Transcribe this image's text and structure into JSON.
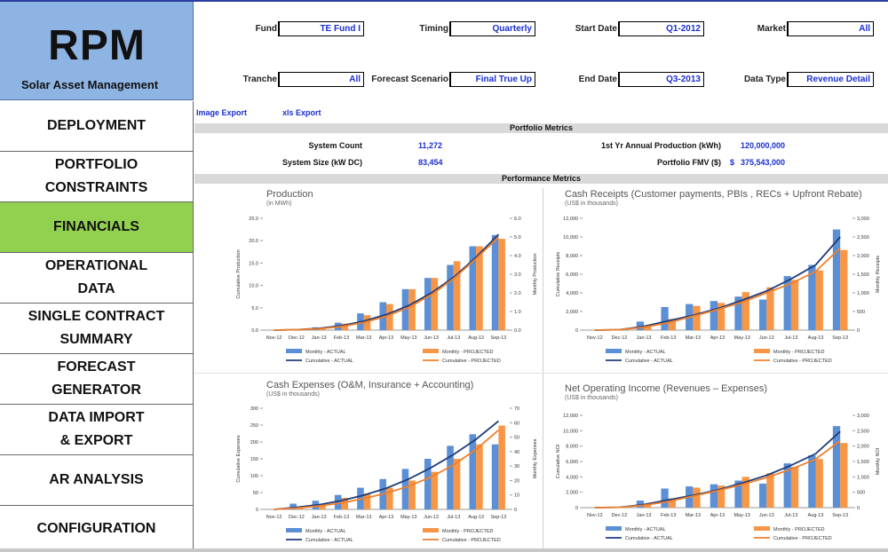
{
  "logo": {
    "title": "RPM",
    "subtitle": "Solar Asset Management"
  },
  "nav": [
    {
      "label": "DEPLOYMENT",
      "active": false
    },
    {
      "label": "PORTFOLIO\nCONSTRAINTS",
      "active": false
    },
    {
      "label": "FINANCIALS",
      "active": true
    },
    {
      "label": "OPERATIONAL\nDATA",
      "active": false
    },
    {
      "label": "SINGLE CONTRACT\nSUMMARY",
      "active": false
    },
    {
      "label": "FORECAST\nGENERATOR",
      "active": false
    },
    {
      "label": "DATA IMPORT\n& EXPORT",
      "active": false
    },
    {
      "label": "AR ANALYSIS",
      "active": false
    },
    {
      "label": "CONFIGURATION",
      "active": false
    }
  ],
  "filters": {
    "fund": {
      "label": "Fund",
      "value": "TE Fund I"
    },
    "timing": {
      "label": "Timing",
      "value": "Quarterly"
    },
    "start_date": {
      "label": "Start Date",
      "value": "Q1-2012"
    },
    "market": {
      "label": "Market",
      "value": "All"
    },
    "tranche": {
      "label": "Tranche",
      "value": "All"
    },
    "forecast_scenario": {
      "label": "Forecast Scenario",
      "value": "Final True Up"
    },
    "end_date": {
      "label": "End Date",
      "value": "Q3-2013"
    },
    "data_type": {
      "label": "Data Type",
      "value": "Revenue Detail"
    }
  },
  "exports": {
    "image": "Image Export",
    "xls": "xls Export"
  },
  "portfolio": {
    "header": "Portfolio Metrics",
    "system_count_label": "System Count",
    "system_count": "11,272",
    "system_size_label": "System Size (kW DC)",
    "system_size": "83,454",
    "production_label": "1st Yr Annual Production (kWh)",
    "production": "120,000,000",
    "fmv_label": "Portfolio FMV ($)",
    "fmv_dollar": "$",
    "fmv": "375,543,000"
  },
  "performance": {
    "header": "Performance Metrics"
  },
  "legend": {
    "monthly_actual": "Monthly - ACTUAL",
    "monthly_projected": "Monthly - PROJECTED",
    "cumulative_actual": "Cumulative - ACTUAL",
    "cumulative_projected": "Cumulative - PROJECTED"
  },
  "colors": {
    "actual_bar": "#5b8fd6",
    "projected_bar": "#f79646",
    "actual_line": "#1f3d7a",
    "projected_line": "#f07f2a",
    "nav_active": "#92d050",
    "logo_bg": "#8eb4e3",
    "value_text": "#1a2fd0"
  },
  "chart_data": [
    {
      "type": "bar",
      "title": "Production",
      "subtitle": "(in MWh)",
      "ylabel": "Cumulative  Production",
      "y2label": "Monthly  Production",
      "categories": [
        "Nov-12",
        "Dec-12",
        "Jan-13",
        "Feb-13",
        "Mar-13",
        "Apr-13",
        "May-13",
        "Jun-13",
        "Jul-13",
        "Aug-13",
        "Sep-13"
      ],
      "ylim": [
        0,
        25
      ],
      "y2lim": [
        0,
        6
      ],
      "yticks": [
        "0.0",
        "5.0",
        "10.0",
        "15.0",
        "20.0",
        "25.0"
      ],
      "y2ticks": [
        "0.0",
        "1.0",
        "2.0",
        "3.0",
        "4.0",
        "5.0",
        "6.0"
      ],
      "series": [
        {
          "name": "Monthly - ACTUAL",
          "kind": "bar",
          "axis": "y2",
          "values": [
            0,
            0,
            0.15,
            0.4,
            0.9,
            1.5,
            2.2,
            2.8,
            3.5,
            4.5,
            5.1
          ]
        },
        {
          "name": "Monthly - PROJECTED",
          "kind": "bar",
          "axis": "y2",
          "values": [
            0,
            0,
            0.1,
            0.35,
            0.8,
            1.4,
            2.2,
            2.8,
            3.7,
            4.5,
            4.9
          ]
        },
        {
          "name": "Cumulative - ACTUAL",
          "kind": "line",
          "axis": "y",
          "values": [
            0,
            0.1,
            0.4,
            1.0,
            2.0,
            3.5,
            5.5,
            8.3,
            11.8,
            16.3,
            21.4
          ]
        },
        {
          "name": "Cumulative - PROJECTED",
          "kind": "line",
          "axis": "y",
          "values": [
            0,
            0.1,
            0.3,
            0.8,
            1.7,
            3.1,
            5.1,
            7.9,
            11.5,
            16.0,
            20.8
          ]
        }
      ]
    },
    {
      "type": "bar",
      "title": "Cash Receipts (Customer payments, PBIs , RECs + Upfront Rebate)",
      "subtitle": "(US$ in thousands)",
      "ylabel": "Cumulative  Receipts",
      "y2label": "Monthly  Receipts",
      "categories": [
        "Nov-12",
        "Dec-12",
        "Jan-13",
        "Feb-13",
        "Mar-13",
        "Apr-13",
        "May-13",
        "Jun-13",
        "Jul-13",
        "Aug-13",
        "Sep-13"
      ],
      "ylim": [
        0,
        12000
      ],
      "y2lim": [
        0,
        3000
      ],
      "yticks": [
        "0",
        "2,000",
        "4,000",
        "6,000",
        "8,000",
        "10,000",
        "12,000"
      ],
      "y2ticks": [
        "0",
        "500",
        "1,000",
        "1,500",
        "2,000",
        "2,500",
        "3,000"
      ],
      "series": [
        {
          "name": "Monthly - ACTUAL",
          "kind": "bar",
          "axis": "y2",
          "values": [
            0,
            0,
            230,
            620,
            700,
            780,
            900,
            820,
            1450,
            1750,
            2700
          ]
        },
        {
          "name": "Monthly - PROJECTED",
          "kind": "bar",
          "axis": "y2",
          "values": [
            0,
            0,
            110,
            300,
            650,
            730,
            1020,
            1150,
            1350,
            1600,
            2150
          ]
        },
        {
          "name": "Cumulative - ACTUAL",
          "kind": "line",
          "axis": "y",
          "values": [
            0,
            50,
            400,
            1000,
            1600,
            2300,
            3200,
            4200,
            5500,
            7000,
            10000
          ]
        },
        {
          "name": "Cumulative - PROJECTED",
          "kind": "line",
          "axis": "y",
          "values": [
            0,
            50,
            300,
            800,
            1500,
            2200,
            3000,
            4000,
            5000,
            6300,
            8800
          ]
        }
      ]
    },
    {
      "type": "bar",
      "title": "Cash Expenses (O&M, Insurance + Accounting)",
      "subtitle": "(US$ in thousands)",
      "ylabel": "Cumulative  Expenses",
      "y2label": "Monthly  Expenses",
      "categories": [
        "Nov-12",
        "Dec-12",
        "Jan-13",
        "Feb-13",
        "Mar-13",
        "Apr-13",
        "May-13",
        "Jun-13",
        "Jul-13",
        "Aug-13",
        "Sep-13"
      ],
      "ylim": [
        0,
        300
      ],
      "y2lim": [
        0,
        70
      ],
      "yticks": [
        "0",
        "50",
        "100",
        "150",
        "200",
        "250",
        "300"
      ],
      "y2ticks": [
        "0",
        "10",
        "20",
        "30",
        "40",
        "50",
        "60",
        "70"
      ],
      "series": [
        {
          "name": "Monthly - ACTUAL",
          "kind": "bar",
          "axis": "y2",
          "values": [
            0,
            4,
            6,
            10,
            15,
            21,
            28,
            35,
            44,
            52,
            45
          ]
        },
        {
          "name": "Monthly - PROJECTED",
          "kind": "bar",
          "axis": "y2",
          "values": [
            0,
            2,
            4,
            8,
            11,
            15,
            20,
            26,
            35,
            45,
            58
          ]
        },
        {
          "name": "Cumulative - ACTUAL",
          "kind": "line",
          "axis": "y",
          "values": [
            0,
            6,
            14,
            26,
            42,
            63,
            90,
            124,
            163,
            208,
            262
          ]
        },
        {
          "name": "Cumulative - PROJECTED",
          "kind": "line",
          "axis": "y",
          "values": [
            0,
            4,
            10,
            19,
            32,
            48,
            69,
            96,
            132,
            178,
            235
          ]
        }
      ]
    },
    {
      "type": "bar",
      "title": "Net Operating Income (Revenues – Expenses)",
      "subtitle": "(US$ in thousands)",
      "ylabel": "Cumulative  NOI",
      "y2label": "Monthly  NOI",
      "categories": [
        "Nov-12",
        "Dec-12",
        "Jan-13",
        "Feb-13",
        "Mar-13",
        "Apr-13",
        "May-13",
        "Jun-13",
        "Jul-13",
        "Aug-13",
        "Sep-13"
      ],
      "ylim": [
        0,
        12000
      ],
      "y2lim": [
        0,
        3000
      ],
      "yticks": [
        "0",
        "2,000",
        "4,000",
        "6,000",
        "8,000",
        "10,000",
        "12,000"
      ],
      "y2ticks": [
        "0",
        "500",
        "1,000",
        "1,500",
        "2,000",
        "2,500",
        "3,000"
      ],
      "series": [
        {
          "name": "Monthly - ACTUAL",
          "kind": "bar",
          "axis": "y2",
          "values": [
            0,
            0,
            230,
            620,
            690,
            760,
            880,
            780,
            1440,
            1700,
            2650
          ]
        },
        {
          "name": "Monthly - PROJECTED",
          "kind": "bar",
          "axis": "y2",
          "values": [
            0,
            0,
            110,
            300,
            650,
            720,
            1000,
            1120,
            1330,
            1580,
            2100
          ]
        },
        {
          "name": "Cumulative - ACTUAL",
          "kind": "line",
          "axis": "y",
          "values": [
            0,
            50,
            400,
            1000,
            1600,
            2300,
            3200,
            4200,
            5500,
            7000,
            9900
          ]
        },
        {
          "name": "Cumulative - PROJECTED",
          "kind": "line",
          "axis": "y",
          "values": [
            0,
            50,
            300,
            800,
            1500,
            2200,
            3000,
            3900,
            5000,
            6300,
            8700
          ]
        }
      ]
    }
  ]
}
